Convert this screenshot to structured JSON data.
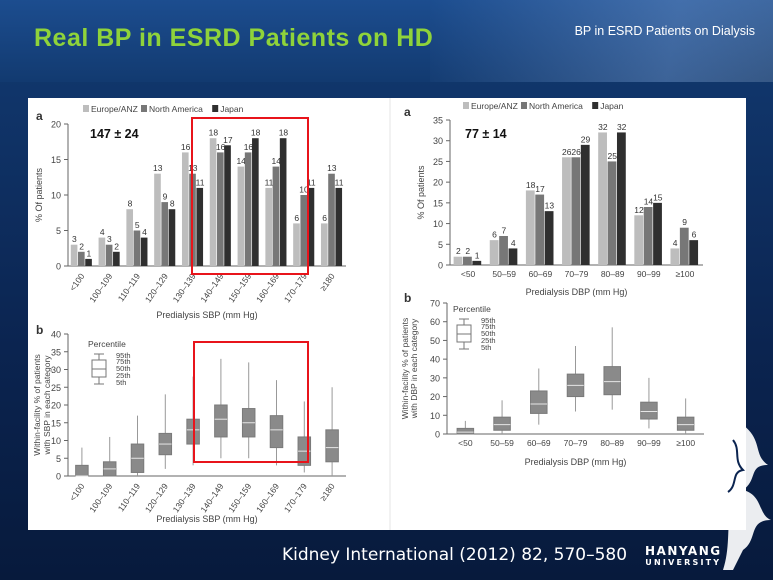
{
  "slide": {
    "title": "Real BP in ESRD Patients on HD",
    "subtitle": "BP in ESRD Patients on Dialysis",
    "citation": "Kidney International  (2012) 82, 570–580",
    "logo_line1": "HANYANG",
    "logo_line2": "UNIVERSITY",
    "colors": {
      "title": "#8fd33a",
      "background": "#0d2a57",
      "highlight_box": "#e8141b",
      "europe": "#bdbdbd",
      "north_america": "#777777",
      "japan": "#2f2f2f",
      "box": "#8a8a8a"
    }
  },
  "chart_data": [
    {
      "panel": "a",
      "type": "bar",
      "annotation": "147 ± 24",
      "xlabel": "Predialysis SBP (mm Hg)",
      "ylabel": "% Of patients",
      "ylim": [
        0,
        20
      ],
      "yticks": [
        "0",
        "5",
        "10",
        "15",
        "20"
      ],
      "legend": "top-left",
      "categories": [
        "<100",
        "100–109",
        "110–119",
        "120–129",
        "130–139",
        "140–149",
        "150–159",
        "160–169",
        "170–179",
        "≥180"
      ],
      "series": [
        {
          "name": "Europe/ANZ",
          "values": [
            3,
            4,
            8,
            13,
            16,
            18,
            14,
            11,
            6,
            6
          ],
          "labels": [
            "3",
            "4",
            "8",
            "13",
            "16",
            "18",
            "14",
            "11",
            "6",
            "6"
          ]
        },
        {
          "name": "North America",
          "values": [
            2,
            3,
            5,
            9,
            13,
            16,
            16,
            14,
            10,
            13
          ],
          "labels": [
            "2",
            "3",
            "5",
            "9",
            "13",
            "16",
            "16",
            "14",
            "10",
            "13"
          ]
        },
        {
          "name": "Japan",
          "values": [
            1,
            2,
            4,
            8,
            11,
            17,
            18,
            18,
            11,
            11
          ],
          "labels": [
            "1",
            "2",
            "4",
            "8",
            "11",
            "17",
            "18",
            "18",
            "11",
            "11"
          ]
        }
      ]
    },
    {
      "panel": "a",
      "type": "bar",
      "annotation": "77 ± 14",
      "xlabel": "Predialysis DBP (mm Hg)",
      "ylabel": "% Of patients",
      "ylim": [
        0,
        35
      ],
      "yticks": [
        "0",
        "5",
        "10",
        "15",
        "20",
        "25",
        "30",
        "35"
      ],
      "legend": "top-left",
      "categories": [
        "<50",
        "50–59",
        "60–69",
        "70–79",
        "80–89",
        "90–99",
        "≥100"
      ],
      "series": [
        {
          "name": "Europe/ANZ",
          "values": [
            2,
            6,
            18,
            26,
            32,
            12,
            4
          ],
          "labels": [
            "2",
            "6",
            "18",
            "26",
            "32",
            "12",
            "4"
          ]
        },
        {
          "name": "North America",
          "values": [
            2,
            7,
            17,
            26,
            25,
            14,
            9
          ],
          "labels": [
            "2",
            "7",
            "17",
            "26",
            "25",
            "14",
            "9"
          ]
        },
        {
          "name": "Japan",
          "values": [
            1,
            4,
            13,
            29,
            32,
            15,
            6
          ],
          "labels": [
            "1",
            "4",
            "13",
            "29",
            "32",
            "15",
            "6"
          ]
        }
      ]
    },
    {
      "panel": "b",
      "type": "box",
      "xlabel": "Predialysis SBP (mm Hg)",
      "ylabel_line1": "Within-facility % of patients",
      "ylabel_line2": "with SBP in each category",
      "ylim": [
        0,
        40
      ],
      "yticks": [
        "0",
        "5",
        "10",
        "15",
        "20",
        "25",
        "30",
        "35",
        "40"
      ],
      "legend_title": "Percentile",
      "legend_labels": [
        "95th",
        "75th",
        "50th",
        "25th",
        "5th"
      ],
      "categories": [
        "<100",
        "100–109",
        "110–119",
        "120–129",
        "130–139",
        "140–149",
        "150–159",
        "160–169",
        "170–179",
        "≥180"
      ],
      "boxes": [
        {
          "p5": 0,
          "p25": 0,
          "p50": 0,
          "p75": 3,
          "p95": 8
        },
        {
          "p5": 0,
          "p25": 0,
          "p50": 2,
          "p75": 4,
          "p95": 11
        },
        {
          "p5": 0,
          "p25": 1,
          "p50": 5,
          "p75": 9,
          "p95": 17
        },
        {
          "p5": 2,
          "p25": 6,
          "p50": 9,
          "p75": 12,
          "p95": 23
        },
        {
          "p5": 3,
          "p25": 9,
          "p50": 13,
          "p75": 16,
          "p95": 28
        },
        {
          "p5": 5,
          "p25": 11,
          "p50": 16,
          "p75": 20,
          "p95": 33
        },
        {
          "p5": 5,
          "p25": 11,
          "p50": 15,
          "p75": 19,
          "p95": 32
        },
        {
          "p5": 3,
          "p25": 8,
          "p50": 13,
          "p75": 17,
          "p95": 27
        },
        {
          "p5": 1,
          "p25": 3,
          "p50": 7,
          "p75": 11,
          "p95": 21
        },
        {
          "p5": 0,
          "p25": 4,
          "p50": 8,
          "p75": 13,
          "p95": 25
        }
      ]
    },
    {
      "panel": "b",
      "type": "box",
      "xlabel": "Predialysis DBP (mm Hg)",
      "ylabel_line1": "Within-facility % of patients",
      "ylabel_line2": "with DBP in each category",
      "ylim": [
        0,
        70
      ],
      "yticks": [
        "0",
        "10",
        "20",
        "30",
        "40",
        "50",
        "60",
        "70"
      ],
      "legend_title": "Percentile",
      "legend_labels": [
        "95th",
        "75th",
        "50th",
        "25th",
        "5th"
      ],
      "categories": [
        "<50",
        "50–59",
        "60–69",
        "70–79",
        "80–89",
        "90–99",
        "≥100"
      ],
      "boxes": [
        {
          "p5": 0,
          "p25": 0,
          "p50": 1,
          "p75": 3,
          "p95": 7
        },
        {
          "p5": 0,
          "p25": 2,
          "p50": 5,
          "p75": 9,
          "p95": 18
        },
        {
          "p5": 5,
          "p25": 11,
          "p50": 16,
          "p75": 23,
          "p95": 35
        },
        {
          "p5": 12,
          "p25": 20,
          "p50": 26,
          "p75": 32,
          "p95": 47
        },
        {
          "p5": 13,
          "p25": 21,
          "p50": 28,
          "p75": 36,
          "p95": 57
        },
        {
          "p5": 3,
          "p25": 8,
          "p50": 12,
          "p75": 17,
          "p95": 30
        },
        {
          "p5": 0,
          "p25": 2,
          "p50": 5,
          "p75": 9,
          "p95": 19
        }
      ]
    }
  ]
}
